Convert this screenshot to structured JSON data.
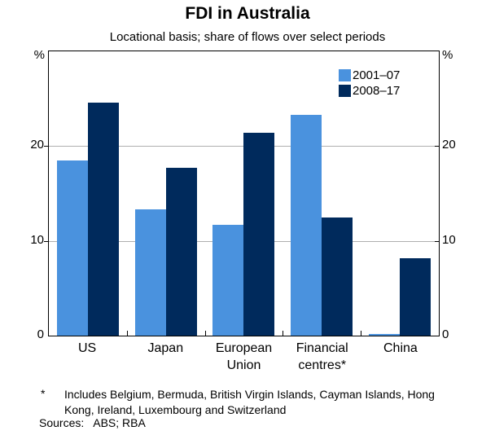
{
  "title": "FDI in Australia",
  "subtitle": "Locational basis; share of flows over select periods",
  "chart_data": {
    "type": "bar",
    "categories": [
      "US",
      "Japan",
      "European Union",
      "Financial centres*",
      "China"
    ],
    "category_label_lines": [
      [
        "US"
      ],
      [
        "Japan"
      ],
      [
        "European",
        "Union"
      ],
      [
        "Financial",
        "centres*"
      ],
      [
        "China"
      ]
    ],
    "series": [
      {
        "name": "2001–07",
        "color": "#4A92DE",
        "values": [
          18.5,
          13.3,
          11.7,
          23.3,
          0.15
        ]
      },
      {
        "name": "2008–17",
        "color": "#002A5C",
        "values": [
          24.6,
          17.7,
          21.4,
          12.5,
          8.2
        ]
      }
    ],
    "ylim": [
      0,
      30
    ],
    "yticks": [
      0,
      10,
      20
    ],
    "gridlines": [
      10,
      20
    ],
    "axis_unit": "%",
    "grid_color": "#AFAFAF",
    "legend_position": "top-right",
    "grid_on": true
  },
  "footnote": {
    "marker": "*",
    "text": "Includes Belgium, Bermuda, British Virgin Islands, Cayman Islands, Hong Kong, Ireland, Luxembourg and Switzerland"
  },
  "sources_label": "Sources:",
  "sources_text": "ABS; RBA"
}
